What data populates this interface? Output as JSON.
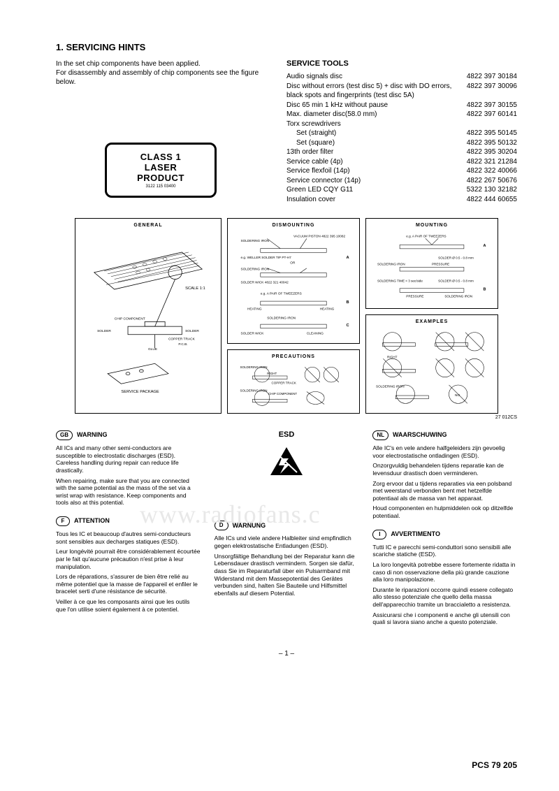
{
  "section_title": "1. SERVICING HINTS",
  "intro": {
    "line1": "In the set chip components have been applied.",
    "line2": "For disassembly and assembly of chip components see the figure below."
  },
  "laser": {
    "line1": "CLASS 1",
    "line2": "LASER PRODUCT",
    "code": "3122 115 03400"
  },
  "service_tools": {
    "title": "SERVICE TOOLS",
    "items": [
      {
        "desc": "Audio signals disc",
        "part": "4822 397 30184",
        "indent": false
      },
      {
        "desc": "Disc without errors (test disc 5) + disc with DO errors, black spots and fingerprints (test disc 5A)",
        "part": "4822 397 30096",
        "indent": false
      },
      {
        "desc": "Disc 65 min 1 kHz without pause",
        "part": "4822 397 30155",
        "indent": false
      },
      {
        "desc": "Max. diameter disc(58.0 mm)",
        "part": "4822 397 60141",
        "indent": false
      },
      {
        "desc": "Torx screwdrivers",
        "part": "",
        "indent": false
      },
      {
        "desc": "Set (straight)",
        "part": "4822 395 50145",
        "indent": true
      },
      {
        "desc": "Set (square)",
        "part": "4822 395 50132",
        "indent": true
      },
      {
        "desc": "13th order filter",
        "part": "4822 395 30204",
        "indent": false
      },
      {
        "desc": "Service cable (4p)",
        "part": "4822 321 21284",
        "indent": false
      },
      {
        "desc": "Service flexfoil (14p)",
        "part": "4822 322 40066",
        "indent": false
      },
      {
        "desc": "Service connector (14p)",
        "part": "4822 267 50676",
        "indent": false
      },
      {
        "desc": "Green LED CQY G11",
        "part": "5322 130 32182",
        "indent": false
      },
      {
        "desc": "Insulation cover",
        "part": "4822 444 60655",
        "indent": false
      }
    ]
  },
  "diagrams": {
    "general": {
      "title": "GENERAL",
      "labels": {
        "scale": "SCALE 1:1",
        "chip": "CHIP COMPONENT",
        "solder": "SOLDER",
        "copper": "COPPER TRACK",
        "pcb": "P.C.B.",
        "glue": "GLUE",
        "package": "SERVICE PACKAGE"
      }
    },
    "dismounting": {
      "title": "DISMOUNTING",
      "labels": {
        "vacuum": "VACUUM PISTON 4822 395 10082",
        "soldering_iron": "SOLDERING IRON",
        "weller": "e.g. WELLER SOLDER TIP PT-H7",
        "or": "OR",
        "wick": "SOLDER WICK 4822 321 40042",
        "tweezers": "e.g. A PAIR OF TWEEZERS",
        "heating": "HEATING",
        "cleaning": "CLEANING",
        "solder_wick": "SOLDER WICK"
      }
    },
    "precautions": {
      "title": "PRECAUTIONS",
      "labels": {
        "soldering_iron": "SOLDERING IRON",
        "right": "RIGHT",
        "copper": "COPPER TRACK",
        "chip": "CHIP COMPONENT"
      }
    },
    "mounting": {
      "title": "MOUNTING",
      "labels": {
        "tweezers": "e.g. A PAIR OF TWEEZERS",
        "solder": "SOLDER Ø 0.5 - 0.8 mm",
        "soldering_iron": "SOLDERING IRON",
        "pressure": "PRESSURE",
        "time": "SOLDERING TIME < 3 sec/side"
      }
    },
    "examples": {
      "title": "EXAMPLES",
      "labels": {
        "right": "RIGHT",
        "no": "NO",
        "soldering_iron": "SOLDERING IRON"
      }
    },
    "code": "27 012CS"
  },
  "esd_title": "ESD",
  "warnings": {
    "gb": {
      "code": "GB",
      "title": "WARNING",
      "text": [
        "All ICs and many other semi-conductors are susceptible to electrostatic discharges (ESD). Careless handling during repair can reduce life drastically.",
        "When repairing, make sure that you are connected with the same potential as the mass of the set via a wrist wrap with resistance. Keep components and tools also at this potential."
      ]
    },
    "f": {
      "code": "F",
      "title": "ATTENTION",
      "text": [
        "Tous les IC et beaucoup d'autres semi-conducteurs sont sensibles aux decharges statiques (ESD).",
        "Leur longévité pourrait être considérablement écourtée par le fait qu'aucune précaution n'est prise à leur manipulation.",
        "Lors de réparations, s'assurer de bien être relié au même potentiel que la masse de l'appareil et enfiler le bracelet serti d'une résistance de sécurité.",
        "Veiller à ce que les composants ainsi que les outils que l'on utilise soient également à ce potentiel."
      ]
    },
    "d": {
      "code": "D",
      "title": "WARNUNG",
      "text": [
        "Alle ICs und viele andere Halbleiter sind empfindlich gegen elektrostatische Entladungen (ESD).",
        "Unsorgfältige Behandlung bei der Reparatur kann die Lebensdauer drastisch vermindern. Sorgen sie dafür, dass Sie im Reparaturfall über ein Pulsarmband mit Widerstand mit dem Massepotential des Gerätes verbunden sind, halten Sie Bauteile und Hilfsmittel ebenfalls auf diesem Potential."
      ]
    },
    "nl": {
      "code": "NL",
      "title": "WAARSCHUWING",
      "text": [
        "Alle IC's en vele andere halfgeleiders zijn gevoelig voor electrostatische ontladingen (ESD).",
        "Onzorgvuldig behandelen tijdens reparatie kan de levensduur drastisch doen verminderen.",
        "Zorg ervoor dat u tijdens reparaties via een polsband met weerstand verbonden bent met hetzelfde potentiaal als de massa van het apparaat.",
        "Houd componenten en hulpmiddelen ook op ditzelfde potentiaal."
      ]
    },
    "i": {
      "code": "I",
      "title": "AVVERTIMENTO",
      "text": [
        "Tutti IC e parecchi semi-conduttori sono sensibili alle scariche statiche (ESD).",
        "La loro longevità potrebbe essere fortemente ridatta in caso di non osservazione della più grande cauzione alla loro manipolazione.",
        "Durante le riparazioni occorre quindi essere collegato allo stesso potenziale che quello della massa dell'apparecchio tramite un braccialetto a resistenza.",
        "Assicurarsi che i componenti e anche gli utensili con quali si lavora siano anche a questo potenziale."
      ]
    }
  },
  "page_num": "– 1 –",
  "footer": "PCS 79 205",
  "watermark": "www.radiofans.c"
}
